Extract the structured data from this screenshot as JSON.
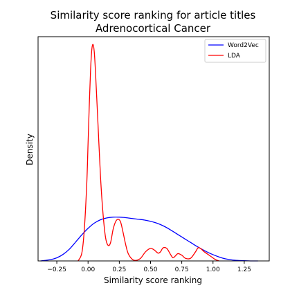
{
  "chart_data": {
    "type": "line",
    "title": "Similarity score ranking for article titles",
    "subtitle": "Adrenocortical Cancer",
    "xlabel": "Similarity score ranking",
    "ylabel": "Density",
    "xlim": [
      -0.4,
      1.45
    ],
    "ylim": [
      0,
      8.6
    ],
    "x_ticks": [
      -0.25,
      0.0,
      0.25,
      0.5,
      0.75,
      1.0,
      1.25
    ],
    "x_tick_labels": [
      "−0.25",
      "0.00",
      "0.25",
      "0.50",
      "0.75",
      "1.00",
      "1.25"
    ],
    "y_ticks_visible": false,
    "grid": false,
    "legend_position": "top-right",
    "series": [
      {
        "name": "Word2Vec",
        "color": "#0000ff",
        "x": [
          -0.38,
          -0.3,
          -0.25,
          -0.2,
          -0.15,
          -0.1,
          -0.05,
          0.0,
          0.05,
          0.1,
          0.15,
          0.2,
          0.25,
          0.3,
          0.35,
          0.4,
          0.45,
          0.5,
          0.55,
          0.6,
          0.65,
          0.7,
          0.75,
          0.8,
          0.85,
          0.9,
          0.95,
          1.0,
          1.05,
          1.1,
          1.15,
          1.2,
          1.25,
          1.3,
          1.36
        ],
        "y": [
          0.0,
          0.05,
          0.12,
          0.25,
          0.45,
          0.72,
          1.0,
          1.25,
          1.45,
          1.58,
          1.65,
          1.68,
          1.68,
          1.66,
          1.63,
          1.6,
          1.57,
          1.52,
          1.45,
          1.35,
          1.22,
          1.07,
          0.92,
          0.77,
          0.62,
          0.48,
          0.35,
          0.24,
          0.15,
          0.08,
          0.04,
          0.02,
          0.01,
          0.0,
          0.0
        ]
      },
      {
        "name": "LDA",
        "color": "#ff0000",
        "x": [
          -0.08,
          -0.05,
          -0.03,
          -0.01,
          0.0,
          0.01,
          0.02,
          0.03,
          0.04,
          0.05,
          0.06,
          0.08,
          0.1,
          0.12,
          0.14,
          0.16,
          0.18,
          0.2,
          0.22,
          0.24,
          0.26,
          0.28,
          0.3,
          0.32,
          0.35,
          0.38,
          0.42,
          0.46,
          0.5,
          0.53,
          0.56,
          0.58,
          0.6,
          0.63,
          0.66,
          0.68,
          0.7,
          0.72,
          0.75,
          0.78,
          0.82,
          0.86,
          0.88,
          0.9,
          0.93,
          0.96,
          0.99,
          1.02,
          1.05
        ],
        "y": [
          0.0,
          0.3,
          1.2,
          3.0,
          4.5,
          6.0,
          7.3,
          8.1,
          8.3,
          8.0,
          7.2,
          5.2,
          3.2,
          1.8,
          0.9,
          0.6,
          0.7,
          1.2,
          1.5,
          1.6,
          1.5,
          1.1,
          0.65,
          0.3,
          0.08,
          0.02,
          0.1,
          0.35,
          0.48,
          0.42,
          0.3,
          0.35,
          0.5,
          0.48,
          0.25,
          0.12,
          0.2,
          0.28,
          0.22,
          0.1,
          0.1,
          0.35,
          0.5,
          0.48,
          0.35,
          0.25,
          0.15,
          0.05,
          0.0
        ]
      }
    ]
  }
}
